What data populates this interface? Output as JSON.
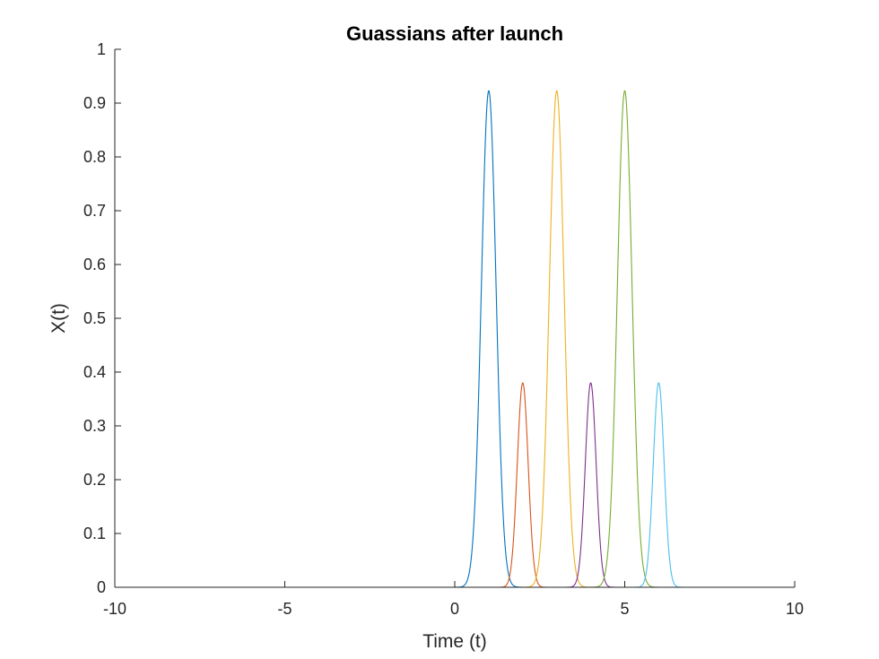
{
  "chart_data": {
    "type": "line",
    "title": "Guassians after launch",
    "xlabel": "Time (t)",
    "ylabel": "X(t)",
    "xlim": [
      -10,
      10
    ],
    "ylim": [
      0,
      1
    ],
    "xticks": [
      -10,
      -5,
      0,
      5,
      10
    ],
    "yticks": [
      0,
      0.1,
      0.2,
      0.3,
      0.4,
      0.5,
      0.6,
      0.7,
      0.8,
      0.9,
      1
    ],
    "xtick_labels": [
      "-10",
      "-5",
      "0",
      "5",
      "10"
    ],
    "ytick_labels": [
      "0",
      "0.1",
      "0.2",
      "0.3",
      "0.4",
      "0.5",
      "0.6",
      "0.7",
      "0.8",
      "0.9",
      "1"
    ],
    "grid": false,
    "legend": "none",
    "series": [
      {
        "color": "#0072BD",
        "center": 1,
        "peak": 0.923,
        "sigma": 0.216,
        "support": [
          0,
          2
        ]
      },
      {
        "color": "#D95319",
        "center": 2,
        "peak": 0.38,
        "sigma": 0.16,
        "support": [
          1.2,
          2.8
        ]
      },
      {
        "color": "#EDB120",
        "center": 3,
        "peak": 0.923,
        "sigma": 0.216,
        "support": [
          2,
          4
        ]
      },
      {
        "color": "#7E2F8E",
        "center": 4,
        "peak": 0.38,
        "sigma": 0.16,
        "support": [
          3.2,
          4.8
        ]
      },
      {
        "color": "#77AC30",
        "center": 5,
        "peak": 0.923,
        "sigma": 0.216,
        "support": [
          4,
          6
        ]
      },
      {
        "color": "#4DBEEE",
        "center": 6,
        "peak": 0.38,
        "sigma": 0.16,
        "support": [
          5.2,
          6.8
        ]
      }
    ]
  }
}
